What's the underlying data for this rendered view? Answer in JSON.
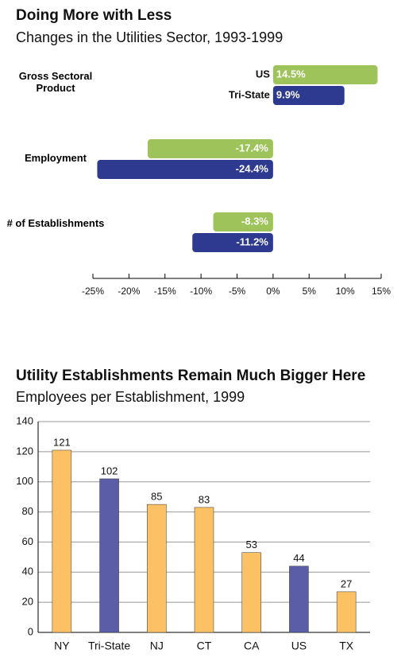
{
  "chart_data": [
    {
      "type": "hbar",
      "title": "Doing More with Less",
      "subtitle": "Changes in the Utilities Sector, 1993-1999",
      "categories": [
        "Gross Sectoral Product",
        "Employment",
        "# of Establishments"
      ],
      "series": [
        {
          "name": "US",
          "color": "#9dc35a",
          "values": [
            14.5,
            -17.4,
            -8.3
          ],
          "value_labels": [
            "14.5%",
            "-17.4%",
            "-8.3%"
          ]
        },
        {
          "name": "Tri-State",
          "color": "#2e3a8f",
          "values": [
            9.9,
            -24.4,
            -11.2
          ],
          "value_labels": [
            "9.9%",
            "-24.4%",
            "-11.2%"
          ]
        }
      ],
      "xlim": [
        -25,
        15
      ],
      "xticks": [
        {
          "value": -25,
          "label": "-25%"
        },
        {
          "value": -20,
          "label": "-20%"
        },
        {
          "value": -15,
          "label": "-15%"
        },
        {
          "value": -10,
          "label": "-10%"
        },
        {
          "value": -5,
          "label": "-5%"
        },
        {
          "value": 0,
          "label": "0%"
        },
        {
          "value": 5,
          "label": "5%"
        },
        {
          "value": 10,
          "label": "10%"
        },
        {
          "value": 15,
          "label": "15%"
        }
      ]
    },
    {
      "type": "bar",
      "title": "Utility Establishments Remain Much Bigger Here",
      "subtitle": "Employees per Establishment, 1999",
      "categories": [
        "NY",
        "Tri-State",
        "NJ",
        "CT",
        "CA",
        "US",
        "TX"
      ],
      "values": [
        121,
        102,
        85,
        83,
        53,
        44,
        27
      ],
      "colors": [
        "#fbc164",
        "#5b5ea6",
        "#fbc164",
        "#fbc164",
        "#fbc164",
        "#5b5ea6",
        "#fbc164"
      ],
      "ylim": [
        0,
        140
      ],
      "yticks": [
        0,
        20,
        40,
        60,
        80,
        100,
        120,
        140
      ],
      "grid": true
    }
  ]
}
